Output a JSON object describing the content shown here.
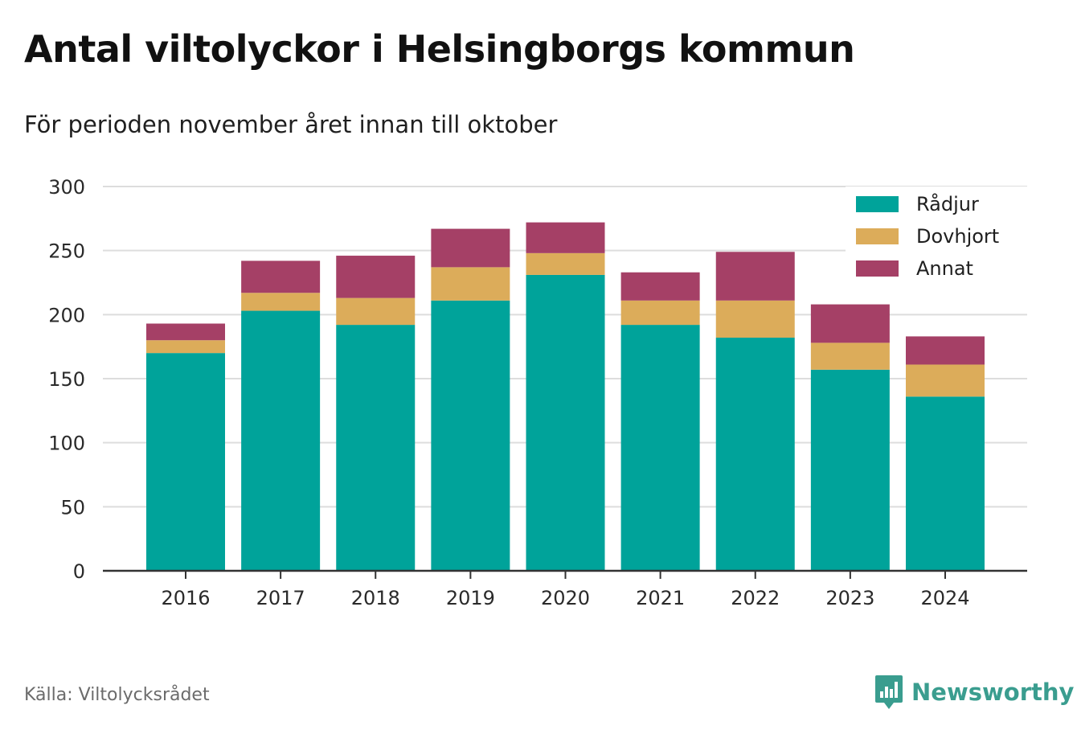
{
  "header": {
    "title": "Antal viltolyckor i Helsingborgs kommun",
    "subtitle": "För perioden november året innan till oktober"
  },
  "footer": {
    "source": "Källa: Viltolycksrådet",
    "brand": "Newsworthy",
    "brand_icon": "newsworthy-logo-icon"
  },
  "colors": {
    "radjur": "#00a39a",
    "dovhjort": "#dcac5a",
    "annat": "#a54066",
    "grid": "#dddddd",
    "axis": "#333333",
    "brand": "#3a9d8f"
  },
  "chart_data": {
    "type": "bar",
    "stacked": true,
    "title": "Antal viltolyckor i Helsingborgs kommun",
    "subtitle": "För perioden november året innan till oktober",
    "xlabel": "",
    "ylabel": "",
    "categories": [
      "2016",
      "2017",
      "2018",
      "2019",
      "2020",
      "2021",
      "2022",
      "2023",
      "2024"
    ],
    "series": [
      {
        "name": "Rådjur",
        "color": "#00a39a",
        "values": [
          170,
          203,
          192,
          211,
          231,
          192,
          182,
          157,
          136
        ]
      },
      {
        "name": "Dovhjort",
        "color": "#dcac5a",
        "values": [
          10,
          14,
          21,
          26,
          17,
          19,
          29,
          21,
          25
        ]
      },
      {
        "name": "Annat",
        "color": "#a54066",
        "values": [
          13,
          25,
          33,
          30,
          24,
          22,
          38,
          30,
          22
        ]
      }
    ],
    "ylim": [
      0,
      300
    ],
    "yticks": [
      0,
      50,
      100,
      150,
      200,
      250,
      300
    ],
    "grid": true,
    "legend": "top-right"
  }
}
